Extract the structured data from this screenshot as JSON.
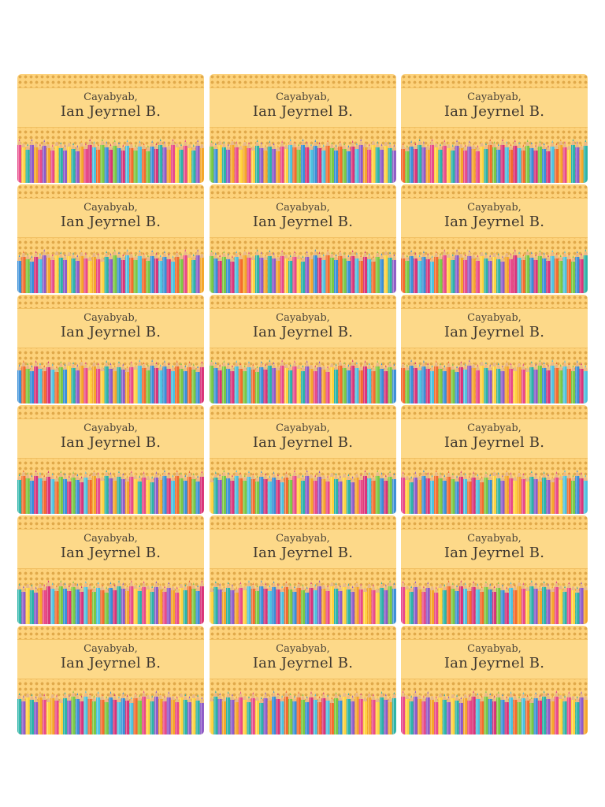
{
  "label_template": {
    "surname": "Cayabyab,",
    "given_name": "Ian Jeyrnel B."
  },
  "labels": [
    {
      "surname": "Cayabyab,",
      "given_name": "Ian Jeyrnel B."
    },
    {
      "surname": "Cayabyab,",
      "given_name": "Ian Jeyrnel B."
    },
    {
      "surname": "Cayabyab,",
      "given_name": "Ian Jeyrnel B."
    },
    {
      "surname": "Cayabyab,",
      "given_name": "Ian Jeyrnel B."
    },
    {
      "surname": "Cayabyab,",
      "given_name": "Ian Jeyrnel B."
    },
    {
      "surname": "Cayabyab,",
      "given_name": "Ian Jeyrnel B."
    },
    {
      "surname": "Cayabyab,",
      "given_name": "Ian Jeyrnel B."
    },
    {
      "surname": "Cayabyab,",
      "given_name": "Ian Jeyrnel B."
    },
    {
      "surname": "Cayabyab,",
      "given_name": "Ian Jeyrnel B."
    },
    {
      "surname": "Cayabyab,",
      "given_name": "Ian Jeyrnel B."
    },
    {
      "surname": "Cayabyab,",
      "given_name": "Ian Jeyrnel B."
    },
    {
      "surname": "Cayabyab,",
      "given_name": "Ian Jeyrnel B."
    },
    {
      "surname": "Cayabyab,",
      "given_name": "Ian Jeyrnel B."
    },
    {
      "surname": "Cayabyab,",
      "given_name": "Ian Jeyrnel B."
    },
    {
      "surname": "Cayabyab,",
      "given_name": "Ian Jeyrnel B."
    },
    {
      "surname": "Cayabyab,",
      "given_name": "Ian Jeyrnel B."
    },
    {
      "surname": "Cayabyab,",
      "given_name": "Ian Jeyrnel B."
    },
    {
      "surname": "Cayabyab,",
      "given_name": "Ian Jeyrnel B."
    }
  ],
  "colors": {
    "background": "#fdd27b",
    "dots": "#e0a94a",
    "band": "#fdd989",
    "text": "#3e372f",
    "pencils": [
      "#e84a8a",
      "#f46b2e",
      "#ffd23f",
      "#7ac943",
      "#2bb3a8",
      "#3a8fd8",
      "#8e5bc9",
      "#d9337a",
      "#f4a72a",
      "#4cc2e0"
    ]
  }
}
